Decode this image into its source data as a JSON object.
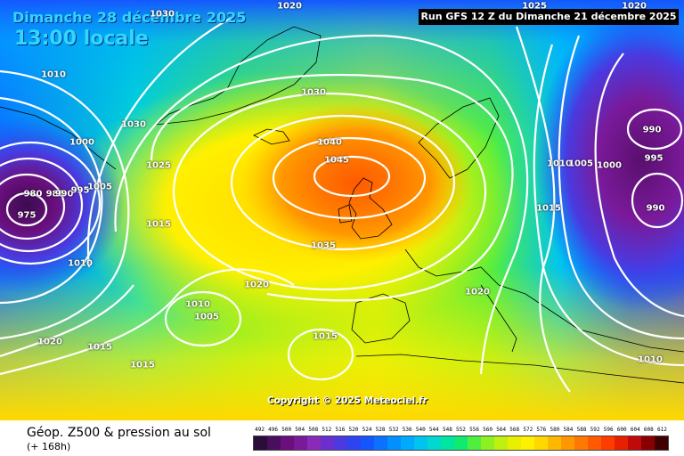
{
  "header": {
    "date": "Dimanche 28 décembre 2025",
    "time": "13:00 locale",
    "run": "Run GFS 12 Z du Dimanche 21 décembre 2025"
  },
  "footer": {
    "title": "Géop. Z500 & pression au sol",
    "subtitle": "(+ 168h)",
    "copyright": "Copyright © 2025 Meteociel.fr"
  },
  "scale": {
    "labels": [
      "492",
      "496",
      "500",
      "504",
      "508",
      "512",
      "516",
      "520",
      "524",
      "528",
      "532",
      "536",
      "540",
      "544",
      "548",
      "552",
      "556",
      "560",
      "564",
      "568",
      "572",
      "576",
      "580",
      "584",
      "588",
      "592",
      "596",
      "600",
      "604",
      "608",
      "612"
    ],
    "colors": [
      "#2b0d3a",
      "#4a0e5e",
      "#6a0f7c",
      "#7a1a9a",
      "#8a2aba",
      "#6b2fd0",
      "#4a3ae0",
      "#2e44f0",
      "#1557ff",
      "#0a72ff",
      "#0090ff",
      "#00aaff",
      "#00c4f0",
      "#00d8d0",
      "#00e6a0",
      "#10ea70",
      "#50ee40",
      "#8ef020",
      "#c0f010",
      "#e8f000",
      "#fff000",
      "#ffd800",
      "#ffb800",
      "#ff9800",
      "#ff7800",
      "#ff5a00",
      "#ff3c00",
      "#e82000",
      "#c00a0a",
      "#8a0000",
      "#400000"
    ]
  },
  "isobars": [
    {
      "text": "1030"
    },
    {
      "text": "1010"
    },
    {
      "text": "1000"
    },
    {
      "text": "1030"
    },
    {
      "text": "1025"
    },
    {
      "text": "1005"
    },
    {
      "text": "980"
    },
    {
      "text": "985"
    },
    {
      "text": "990"
    },
    {
      "text": "995"
    },
    {
      "text": "975"
    },
    {
      "text": "1015"
    },
    {
      "text": "1010"
    },
    {
      "text": "1030"
    },
    {
      "text": "1040"
    },
    {
      "text": "1045"
    },
    {
      "text": "1035"
    },
    {
      "text": "1020"
    },
    {
      "text": "1010"
    },
    {
      "text": "1005"
    },
    {
      "text": "1015"
    },
    {
      "text": "1020"
    },
    {
      "text": "1015"
    },
    {
      "text": "1015"
    },
    {
      "text": "1020"
    },
    {
      "text": "1010"
    },
    {
      "text": "1005"
    },
    {
      "text": "1000"
    },
    {
      "text": "990"
    },
    {
      "text": "995"
    },
    {
      "text": "990"
    },
    {
      "text": "1015"
    },
    {
      "text": "1020"
    },
    {
      "text": "1010"
    },
    {
      "text": "1020"
    },
    {
      "text": "1025"
    }
  ]
}
